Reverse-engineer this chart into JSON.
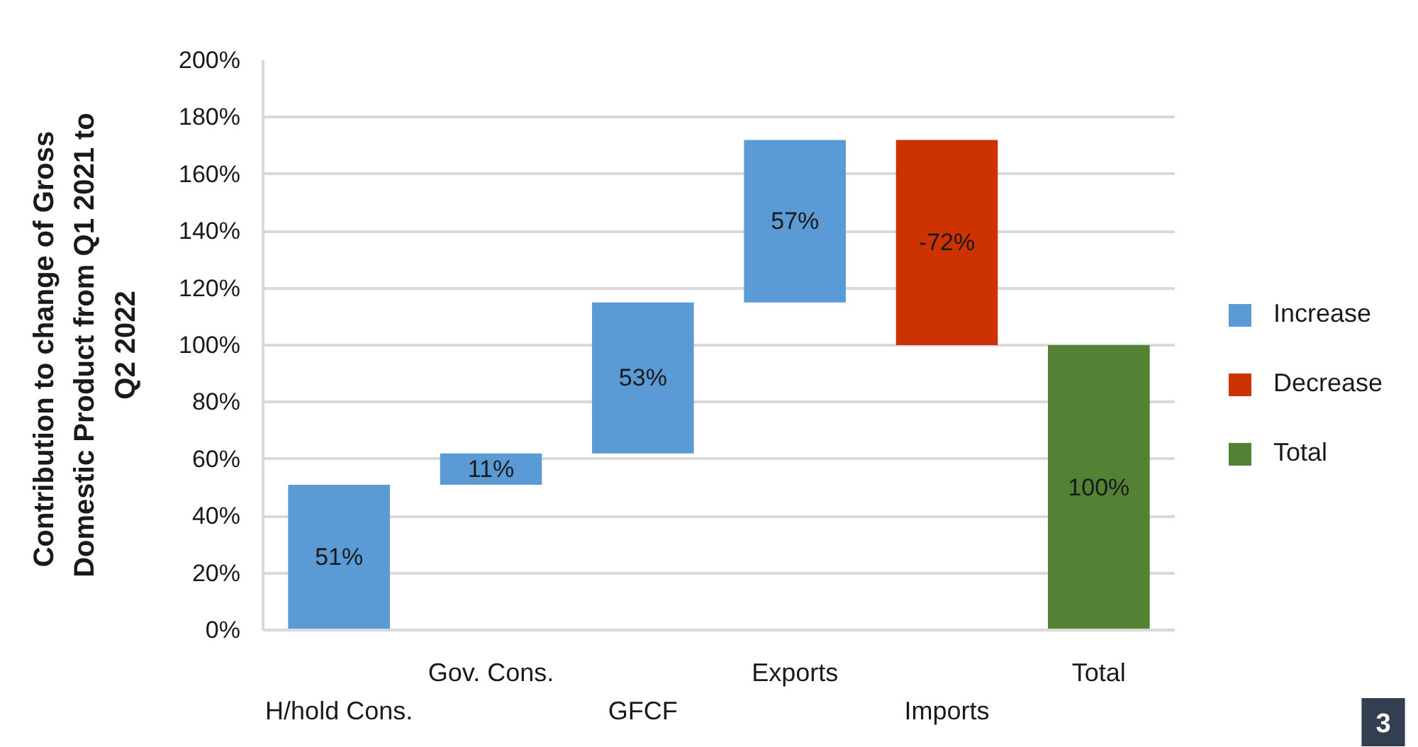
{
  "chart_data": {
    "type": "bar",
    "ylabel": "Contribution  to change of Gross Domestic Product from Q1 2021 to Q2 2022",
    "categories": [
      "H/hold Cons.",
      "Gov. Cons.",
      "GFCF",
      "Exports",
      "Imports",
      "Total"
    ],
    "series": [
      {
        "name": "Increase",
        "color": "#5b9bd5",
        "values": [
          51,
          11,
          53,
          57,
          null,
          null
        ],
        "base": [
          0,
          51,
          62,
          115,
          null,
          null
        ],
        "value_labels": [
          "51%",
          "11%",
          "53%",
          "57%",
          null,
          null
        ]
      },
      {
        "name": "Decrease",
        "color": "#cc3300",
        "values": [
          null,
          null,
          null,
          null,
          -72,
          null
        ],
        "base": [
          null,
          null,
          null,
          null,
          172,
          null
        ],
        "value_labels": [
          null,
          null,
          null,
          null,
          "-72%",
          null
        ]
      },
      {
        "name": "Total",
        "color": "#548235",
        "values": [
          null,
          null,
          null,
          null,
          null,
          100
        ],
        "base": [
          null,
          null,
          null,
          null,
          null,
          0
        ],
        "value_labels": [
          null,
          null,
          null,
          null,
          null,
          "100%"
        ]
      }
    ],
    "ylim": [
      0,
      200
    ],
    "yticks": [
      {
        "value": 0,
        "label": "0%"
      },
      {
        "value": 20,
        "label": "20%"
      },
      {
        "value": 40,
        "label": "40%"
      },
      {
        "value": 60,
        "label": "60%"
      },
      {
        "value": 80,
        "label": "80%"
      },
      {
        "value": 100,
        "label": "100%"
      },
      {
        "value": 120,
        "label": "120%"
      },
      {
        "value": 140,
        "label": "140%"
      },
      {
        "value": 160,
        "label": "160%"
      },
      {
        "value": 180,
        "label": "180%"
      },
      {
        "value": 200,
        "label": "200%"
      }
    ],
    "grid": "y",
    "legend": "right",
    "annotations": [
      "3"
    ]
  }
}
